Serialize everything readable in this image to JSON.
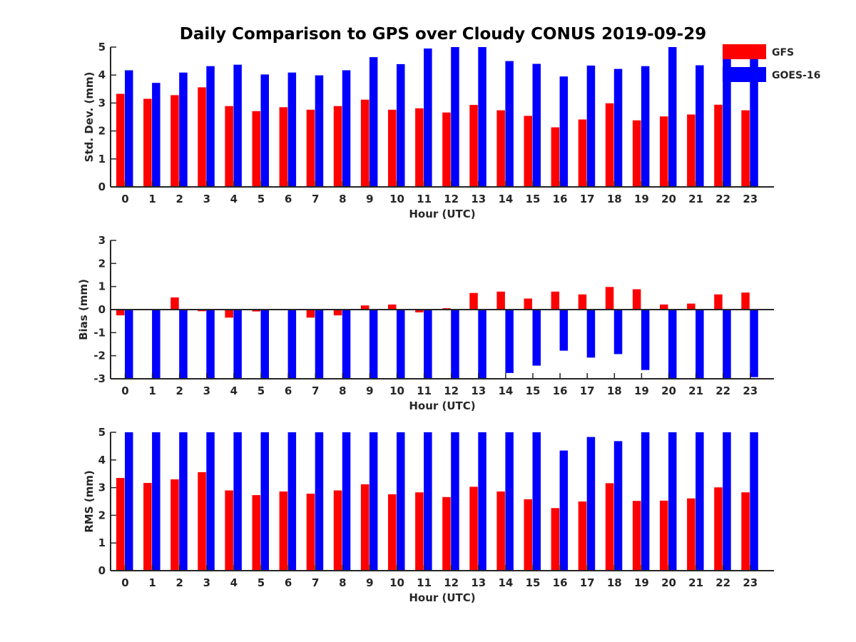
{
  "chart_data": {
    "title": "Daily Comparison to GPS over Cloudy CONUS 2019-09-29",
    "type": "bar",
    "legend": {
      "placement": "top-right",
      "entries": [
        "GFS",
        "GOES-16"
      ]
    },
    "colors": {
      "GFS": "#ff0000",
      "GOES-16": "#0000ff",
      "axis": "#262626"
    },
    "categories": [
      "0",
      "1",
      "2",
      "3",
      "4",
      "5",
      "6",
      "7",
      "8",
      "9",
      "10",
      "11",
      "12",
      "13",
      "14",
      "15",
      "16",
      "17",
      "18",
      "19",
      "20",
      "21",
      "22",
      "23"
    ],
    "panels": [
      {
        "ylabel": "Std. Dev. (mm)",
        "xlabel": "Hour (UTC)",
        "ylim": [
          0,
          5
        ],
        "yticks": [
          "0",
          "1",
          "2",
          "3",
          "4",
          "5"
        ],
        "series": [
          {
            "name": "GFS",
            "values": [
              3.33,
              3.15,
              3.28,
              3.56,
              2.89,
              2.71,
              2.85,
              2.76,
              2.89,
              3.12,
              2.76,
              2.81,
              2.66,
              2.93,
              2.74,
              2.54,
              2.13,
              2.41,
              2.99,
              2.38,
              2.52,
              2.59,
              2.94,
              2.74
            ]
          },
          {
            "name": "GOES-16",
            "values": [
              4.17,
              3.72,
              4.09,
              4.32,
              4.37,
              4.02,
              4.09,
              3.99,
              4.17,
              4.64,
              4.39,
              4.95,
              5.0,
              5.0,
              4.5,
              4.4,
              3.95,
              4.34,
              4.22,
              4.32,
              5.0,
              4.35,
              5.0,
              4.75
            ]
          }
        ]
      },
      {
        "ylabel": "Bias (mm)",
        "xlabel": "Hour (UTC)",
        "ylim": [
          -3,
          3
        ],
        "yticks": [
          "-3",
          "-2",
          "-1",
          "0",
          "1",
          "2",
          "3"
        ],
        "series": [
          {
            "name": "GFS",
            "values": [
              -0.25,
              -0.03,
              0.53,
              -0.07,
              -0.35,
              -0.08,
              0.0,
              -0.35,
              -0.25,
              0.18,
              0.22,
              -0.12,
              0.06,
              0.72,
              0.78,
              0.48,
              0.78,
              0.66,
              0.98,
              0.88,
              0.22,
              0.26,
              0.66,
              0.74
            ]
          },
          {
            "name": "GOES-16",
            "values": [
              -3.0,
              -3.0,
              -3.0,
              -3.0,
              -3.0,
              -3.0,
              -3.0,
              -3.0,
              -3.0,
              -3.0,
              -3.0,
              -3.0,
              -3.0,
              -3.0,
              -2.75,
              -2.43,
              -1.78,
              -2.08,
              -1.93,
              -2.62,
              -3.0,
              -3.0,
              -3.0,
              -2.93
            ]
          }
        ]
      },
      {
        "ylabel": "RMS (mm)",
        "xlabel": "Hour (UTC)",
        "ylim": [
          0,
          5
        ],
        "yticks": [
          "0",
          "1",
          "2",
          "3",
          "4",
          "5"
        ],
        "series": [
          {
            "name": "GFS",
            "values": [
              3.35,
              3.17,
              3.3,
              3.56,
              2.9,
              2.73,
              2.86,
              2.78,
              2.9,
              3.12,
              2.76,
              2.83,
              2.66,
              3.03,
              2.86,
              2.58,
              2.26,
              2.5,
              3.16,
              2.52,
              2.53,
              2.61,
              3.01,
              2.83
            ]
          },
          {
            "name": "GOES-16",
            "values": [
              5.0,
              5.0,
              5.0,
              5.0,
              5.0,
              5.0,
              5.0,
              5.0,
              5.0,
              5.0,
              5.0,
              5.0,
              5.0,
              5.0,
              5.0,
              5.0,
              4.34,
              4.83,
              4.68,
              5.0,
              5.0,
              5.0,
              5.0,
              5.0
            ]
          }
        ]
      }
    ]
  }
}
